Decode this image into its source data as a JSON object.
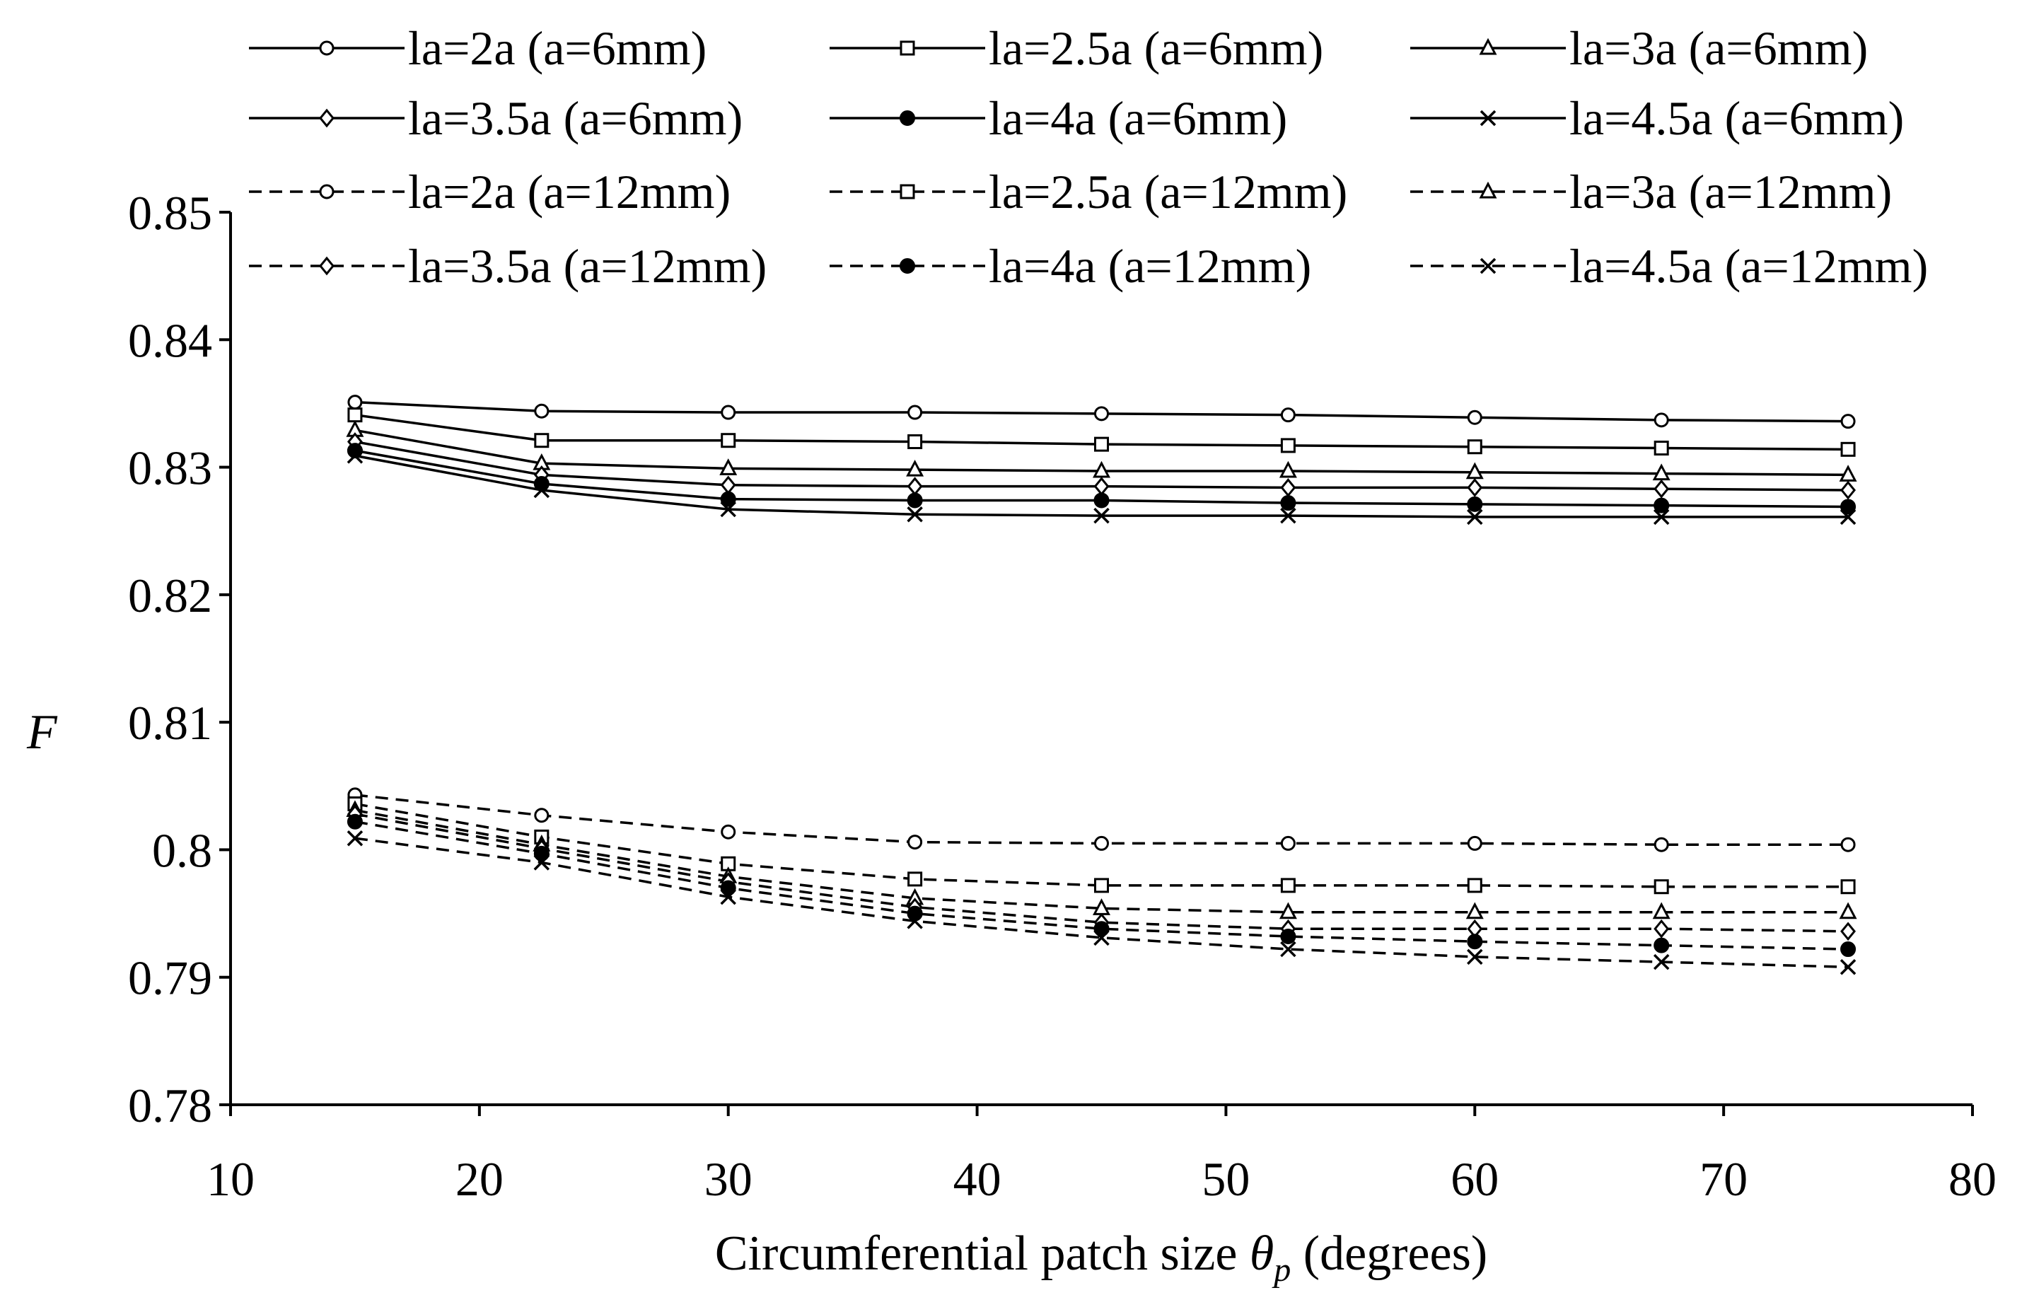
{
  "chart_data": {
    "type": "line",
    "title": "",
    "xlabel_prefix": "Circumferential patch size ",
    "xlabel_symbol": "θ",
    "xlabel_subscript": "p",
    "xlabel_suffix": " (degrees)",
    "ylabel": "F",
    "xlim": [
      10,
      80
    ],
    "ylim": [
      0.78,
      0.85
    ],
    "x_ticks": [
      10,
      20,
      30,
      40,
      50,
      60,
      70,
      80
    ],
    "x_tick_labels": [
      "10",
      "20",
      "30",
      "40",
      "50",
      "60",
      "70",
      "80"
    ],
    "y_ticks": [
      0.78,
      0.79,
      0.8,
      0.81,
      0.82,
      0.83,
      0.84,
      0.85
    ],
    "y_tick_labels": [
      "0.78",
      "0.79",
      "0.8",
      "0.81",
      "0.82",
      "0.83",
      "0.84",
      "0.85"
    ],
    "grid": false,
    "legend_position": "top",
    "x": [
      15,
      22.5,
      30,
      37.5,
      45,
      52.5,
      60,
      67.5,
      75
    ],
    "series": [
      {
        "name": "la=2a (a=6mm)",
        "marker": "circle-open",
        "style": "solid",
        "values": [
          0.8351,
          0.8344,
          0.8343,
          0.8343,
          0.8342,
          0.8341,
          0.8339,
          0.8337,
          0.8336
        ]
      },
      {
        "name": "la=2.5a (a=6mm)",
        "marker": "square-open",
        "style": "solid",
        "values": [
          0.8341,
          0.8321,
          0.8321,
          0.832,
          0.8318,
          0.8317,
          0.8316,
          0.8315,
          0.8314
        ]
      },
      {
        "name": "la=3a (a=6mm)",
        "marker": "triangle-open",
        "style": "solid",
        "values": [
          0.8329,
          0.8303,
          0.8299,
          0.8298,
          0.8297,
          0.8297,
          0.8296,
          0.8295,
          0.8294
        ]
      },
      {
        "name": "la=3.5a (a=6mm)",
        "marker": "diamond-open",
        "style": "solid",
        "values": [
          0.832,
          0.8294,
          0.8286,
          0.8285,
          0.8285,
          0.8284,
          0.8284,
          0.8283,
          0.8282
        ]
      },
      {
        "name": "la=4a (a=6mm)",
        "marker": "circle-filled",
        "style": "solid",
        "values": [
          0.8313,
          0.8287,
          0.8275,
          0.8274,
          0.8274,
          0.8272,
          0.8271,
          0.827,
          0.8269
        ]
      },
      {
        "name": "la=4.5a (a=6mm)",
        "marker": "x",
        "style": "solid",
        "values": [
          0.8309,
          0.8282,
          0.8267,
          0.8263,
          0.8262,
          0.8262,
          0.8261,
          0.8261,
          0.8261
        ]
      },
      {
        "name": "la=2a (a=12mm)",
        "marker": "circle-open",
        "style": "dashed",
        "values": [
          0.8043,
          0.8027,
          0.8014,
          0.8006,
          0.8005,
          0.8005,
          0.8005,
          0.8004,
          0.8004
        ]
      },
      {
        "name": "la=2.5a (a=12mm)",
        "marker": "square-open",
        "style": "dashed",
        "values": [
          0.8036,
          0.801,
          0.7989,
          0.7977,
          0.7972,
          0.7972,
          0.7972,
          0.7971,
          0.7971
        ]
      },
      {
        "name": "la=3a (a=12mm)",
        "marker": "triangle-open",
        "style": "dashed",
        "values": [
          0.8031,
          0.8004,
          0.7979,
          0.7962,
          0.7954,
          0.7951,
          0.7951,
          0.7951,
          0.7951
        ]
      },
      {
        "name": "la=3.5a (a=12mm)",
        "marker": "diamond-open",
        "style": "dashed",
        "values": [
          0.8028,
          0.8001,
          0.7975,
          0.7955,
          0.7943,
          0.7938,
          0.7938,
          0.7938,
          0.7936
        ]
      },
      {
        "name": "la=4a (a=12mm)",
        "marker": "circle-filled",
        "style": "dashed",
        "values": [
          0.8022,
          0.7997,
          0.797,
          0.795,
          0.7938,
          0.7932,
          0.7928,
          0.7925,
          0.7922
        ]
      },
      {
        "name": "la=4.5a (a=12mm)",
        "marker": "x",
        "style": "dashed",
        "values": [
          0.8009,
          0.799,
          0.7963,
          0.7944,
          0.7931,
          0.7922,
          0.7916,
          0.7912,
          0.7908
        ]
      }
    ]
  }
}
